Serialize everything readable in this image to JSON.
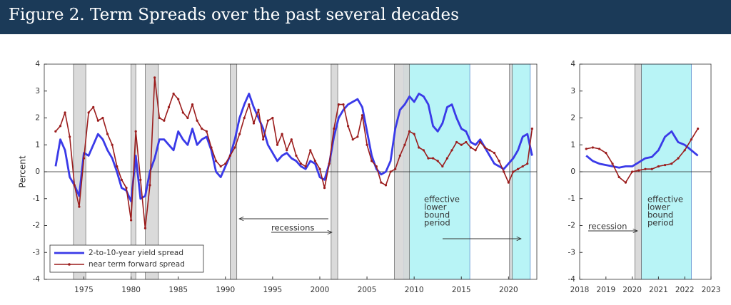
{
  "title": "Figure 2. Term Spreads over the past several decades",
  "chart_data": [
    {
      "type": "line",
      "ylabel": "Percent",
      "xlim": [
        1970.8,
        2023
      ],
      "xticks": [
        1975,
        1980,
        1985,
        1990,
        1995,
        2000,
        2005,
        2010,
        2015,
        2020
      ],
      "ylim": [
        -4,
        4
      ],
      "yticks": [
        -4,
        -3,
        -2,
        -1,
        0,
        1,
        2,
        3,
        4
      ],
      "recessions": [
        [
          1973.9,
          1975.2
        ],
        [
          1980.0,
          1980.5
        ],
        [
          1981.5,
          1982.9
        ],
        [
          1990.5,
          1991.2
        ],
        [
          2001.2,
          2001.9
        ],
        [
          2007.9,
          2009.5
        ],
        [
          2020.1,
          2020.4
        ]
      ],
      "elb_periods": [
        [
          2008.9,
          2015.9
        ],
        [
          2020.2,
          2022.3
        ]
      ],
      "recession_label": "recessions",
      "elb_label": [
        "effective",
        "lower",
        "bound",
        "period"
      ],
      "legend": "lower left",
      "x": [
        1972,
        1972.5,
        1973,
        1973.5,
        1974,
        1974.5,
        1975,
        1975.5,
        1976,
        1976.5,
        1977,
        1977.5,
        1978,
        1978.5,
        1979,
        1979.5,
        1980,
        1980.5,
        1981,
        1981.5,
        1982,
        1982.5,
        1983,
        1983.5,
        1984,
        1984.5,
        1985,
        1985.5,
        1986,
        1986.5,
        1987,
        1987.5,
        1988,
        1988.5,
        1989,
        1989.5,
        1990,
        1990.5,
        1991,
        1991.5,
        1992,
        1992.5,
        1993,
        1993.5,
        1994,
        1994.5,
        1995,
        1995.5,
        1996,
        1996.5,
        1997,
        1997.5,
        1998,
        1998.5,
        1999,
        1999.5,
        2000,
        2000.5,
        2001,
        2001.5,
        2002,
        2002.5,
        2003,
        2003.5,
        2004,
        2004.5,
        2005,
        2005.5,
        2006,
        2006.5,
        2007,
        2007.5,
        2008,
        2008.5,
        2009,
        2009.5,
        2010,
        2010.5,
        2011,
        2011.5,
        2012,
        2012.5,
        2013,
        2013.5,
        2014,
        2014.5,
        2015,
        2015.5,
        2016,
        2016.5,
        2017,
        2017.5,
        2018,
        2018.5,
        2019,
        2019.5,
        2020,
        2020.5,
        2021,
        2021.5,
        2022,
        2022.5
      ],
      "series": [
        {
          "name": "2-to-10-year yield spread",
          "color": "#3a3ae8",
          "markers": false,
          "values": [
            0.2,
            1.2,
            0.8,
            -0.2,
            -0.5,
            -0.9,
            0.7,
            0.6,
            1.0,
            1.4,
            1.2,
            0.8,
            0.5,
            0.0,
            -0.6,
            -0.7,
            -1.1,
            0.6,
            -1.0,
            -0.9,
            0.0,
            0.5,
            1.2,
            1.2,
            1.0,
            0.8,
            1.5,
            1.2,
            1.0,
            1.6,
            1.0,
            1.2,
            1.3,
            0.8,
            0.0,
            -0.2,
            0.2,
            0.6,
            1.2,
            2.0,
            2.5,
            2.9,
            2.4,
            2.0,
            1.6,
            1.0,
            0.7,
            0.4,
            0.6,
            0.7,
            0.5,
            0.4,
            0.2,
            0.1,
            0.4,
            0.3,
            -0.2,
            -0.3,
            0.3,
            1.3,
            2.0,
            2.3,
            2.5,
            2.6,
            2.7,
            2.4,
            1.5,
            0.6,
            0.1,
            -0.1,
            0.0,
            0.4,
            1.6,
            2.3,
            2.5,
            2.8,
            2.6,
            2.9,
            2.8,
            2.5,
            1.7,
            1.5,
            1.8,
            2.4,
            2.5,
            2.0,
            1.6,
            1.5,
            1.1,
            1.0,
            1.2,
            0.9,
            0.6,
            0.3,
            0.2,
            0.1,
            0.3,
            0.5,
            0.8,
            1.3,
            1.4,
            0.6
          ]
        },
        {
          "name": "near term forward spread",
          "color": "#9b1c1c",
          "markers": true,
          "values": [
            1.5,
            1.7,
            2.2,
            1.3,
            -0.5,
            -1.3,
            0.5,
            2.2,
            2.4,
            1.9,
            2.0,
            1.4,
            1.0,
            0.2,
            -0.3,
            -0.6,
            -1.8,
            1.5,
            -0.3,
            -2.1,
            -0.5,
            3.5,
            2.0,
            1.9,
            2.4,
            2.9,
            2.7,
            2.2,
            2.0,
            2.5,
            1.9,
            1.6,
            1.5,
            0.9,
            0.4,
            0.2,
            0.3,
            0.6,
            0.9,
            1.4,
            2.0,
            2.5,
            1.8,
            2.3,
            1.2,
            1.9,
            2.0,
            1.0,
            1.4,
            0.8,
            1.2,
            0.6,
            0.3,
            0.2,
            0.8,
            0.4,
            0.1,
            -0.6,
            0.3,
            1.6,
            2.5,
            2.5,
            1.7,
            1.2,
            1.3,
            2.1,
            1.0,
            0.4,
            0.2,
            -0.4,
            -0.5,
            0.0,
            0.1,
            0.6,
            1.0,
            1.5,
            1.4,
            0.9,
            0.8,
            0.5,
            0.5,
            0.4,
            0.2,
            0.5,
            0.8,
            1.1,
            1.0,
            1.1,
            0.9,
            0.8,
            1.1,
            0.9,
            0.8,
            0.7,
            0.4,
            0.0,
            -0.4,
            0.0,
            0.1,
            0.2,
            0.3,
            1.6
          ]
        }
      ]
    },
    {
      "type": "line",
      "xlim": [
        2018,
        2023
      ],
      "xticks": [
        2018,
        2019,
        2020,
        2021,
        2022,
        2023
      ],
      "ylim": [
        -4,
        4
      ],
      "yticks": [
        -4,
        -3,
        -2,
        -1,
        0,
        1,
        2,
        3,
        4
      ],
      "recessions": [
        [
          2020.1,
          2020.35
        ]
      ],
      "elb_periods": [
        [
          2020.35,
          2022.25
        ]
      ],
      "recession_label": "recession",
      "elb_label": [
        "effective",
        "lower",
        "bound",
        "period"
      ],
      "x": [
        2018.25,
        2018.5,
        2018.75,
        2019,
        2019.25,
        2019.5,
        2019.75,
        2020,
        2020.25,
        2020.5,
        2020.75,
        2021,
        2021.25,
        2021.5,
        2021.75,
        2022,
        2022.25,
        2022.5
      ],
      "series": [
        {
          "name": "2-to-10-year yield spread",
          "color": "#3a3ae8",
          "markers": false,
          "values": [
            0.6,
            0.4,
            0.3,
            0.25,
            0.2,
            0.15,
            0.2,
            0.2,
            0.35,
            0.5,
            0.55,
            0.8,
            1.3,
            1.5,
            1.1,
            1.0,
            0.8,
            0.6
          ]
        },
        {
          "name": "near term forward spread",
          "color": "#9b1c1c",
          "markers": true,
          "values": [
            0.85,
            0.9,
            0.85,
            0.7,
            0.3,
            -0.2,
            -0.4,
            0.0,
            0.05,
            0.1,
            0.1,
            0.2,
            0.25,
            0.3,
            0.5,
            0.8,
            1.2,
            1.6
          ]
        }
      ]
    }
  ]
}
